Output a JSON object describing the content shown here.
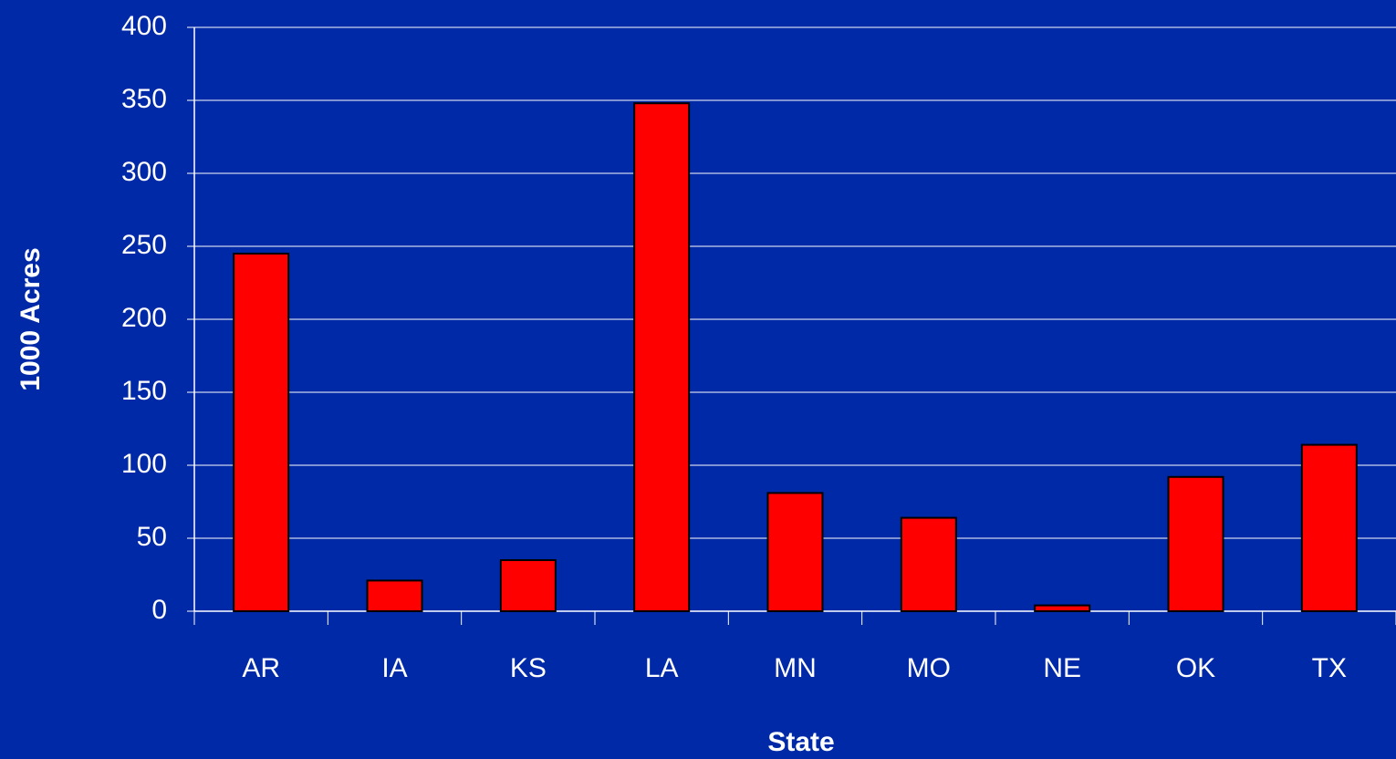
{
  "chart_data": {
    "type": "bar",
    "x_label": "State",
    "y_label": "1000 Acres",
    "categories": [
      "AR",
      "IA",
      "KS",
      "LA",
      "MN",
      "MO",
      "NE",
      "OK",
      "TX"
    ],
    "values": [
      245,
      21,
      35,
      348,
      81,
      64,
      4,
      92,
      114
    ],
    "color": "#ff0000",
    "ylim": [
      0,
      400
    ],
    "yticks": [
      0,
      50,
      100,
      150,
      200,
      250,
      300,
      350,
      400
    ],
    "grid": true
  }
}
